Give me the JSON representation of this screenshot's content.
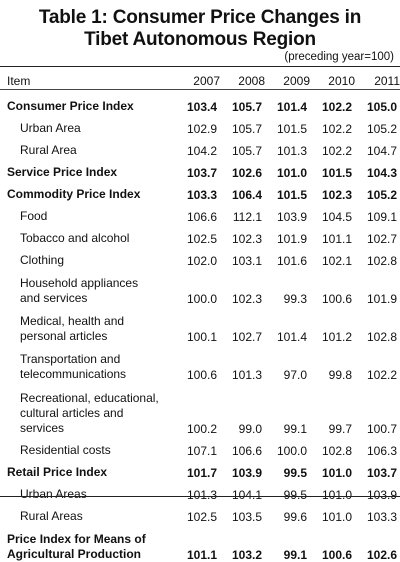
{
  "title_line1": "Table 1: Consumer Price Changes in",
  "title_line2": "Tibet Autonomous Region",
  "unit_note": "(preceding year=100)",
  "header": {
    "item": "Item",
    "years": [
      "2007",
      "2008",
      "2009",
      "2010",
      "2011"
    ]
  },
  "rows": [
    {
      "label": "Consumer Price Index",
      "values": [
        "103.4",
        "105.7",
        "101.4",
        "102.2",
        "105.0"
      ],
      "bold": true
    },
    {
      "label": "Urban Area",
      "values": [
        "102.9",
        "105.7",
        "101.5",
        "102.2",
        "105.2"
      ]
    },
    {
      "label": "Rural Area",
      "values": [
        "104.2",
        "105.7",
        "101.3",
        "102.2",
        "104.7"
      ]
    },
    {
      "label": "Service Price Index",
      "values": [
        "103.7",
        "102.6",
        "101.0",
        "101.5",
        "104.3"
      ],
      "bold": true
    },
    {
      "label": "Commodity Price Index",
      "values": [
        "103.3",
        "106.4",
        "101.5",
        "102.3",
        "105.2"
      ],
      "bold": true
    },
    {
      "label": "Food",
      "values": [
        "106.6",
        "112.1",
        "103.9",
        "104.5",
        "109.1"
      ]
    },
    {
      "label": "Tobacco and alcohol",
      "values": [
        "102.5",
        "102.3",
        "101.9",
        "101.1",
        "102.7"
      ]
    },
    {
      "label": "Clothing",
      "values": [
        "102.0",
        "103.1",
        "101.6",
        "102.1",
        "102.8"
      ]
    },
    {
      "label": "Household appliances\nand services",
      "values": [
        "100.0",
        "102.3",
        "99.3",
        "100.6",
        "101.9"
      ]
    },
    {
      "label": "Medical, health and\npersonal articles",
      "values": [
        "100.1",
        "102.7",
        "101.4",
        "101.2",
        "102.8"
      ]
    },
    {
      "label": "Transportation and\ntelecommunications",
      "values": [
        "100.6",
        "101.3",
        "97.0",
        "99.8",
        "102.2"
      ]
    },
    {
      "label": "Recreational, educational,\ncultural articles and\nservices",
      "values": [
        "100.2",
        "99.0",
        "99.1",
        "99.7",
        "100.7"
      ]
    },
    {
      "label": "Residential costs",
      "values": [
        "107.1",
        "106.6",
        "100.0",
        "102.8",
        "106.3"
      ]
    },
    {
      "label": "Retail Price Index",
      "values": [
        "101.7",
        "103.9",
        "99.5",
        "101.0",
        "103.7"
      ],
      "bold": true
    },
    {
      "label": "Urban Areas",
      "values": [
        "101.3",
        "104.1",
        "99.5",
        "101.0",
        "103.9"
      ]
    },
    {
      "label": "Rural Areas",
      "values": [
        "102.5",
        "103.5",
        "99.6",
        "101.0",
        "103.3"
      ]
    },
    {
      "label": "Price Index for Means of\nAgricultural Production",
      "values": [
        "101.1",
        "103.2",
        "99.1",
        "100.6",
        "102.6"
      ],
      "bold": true
    }
  ]
}
